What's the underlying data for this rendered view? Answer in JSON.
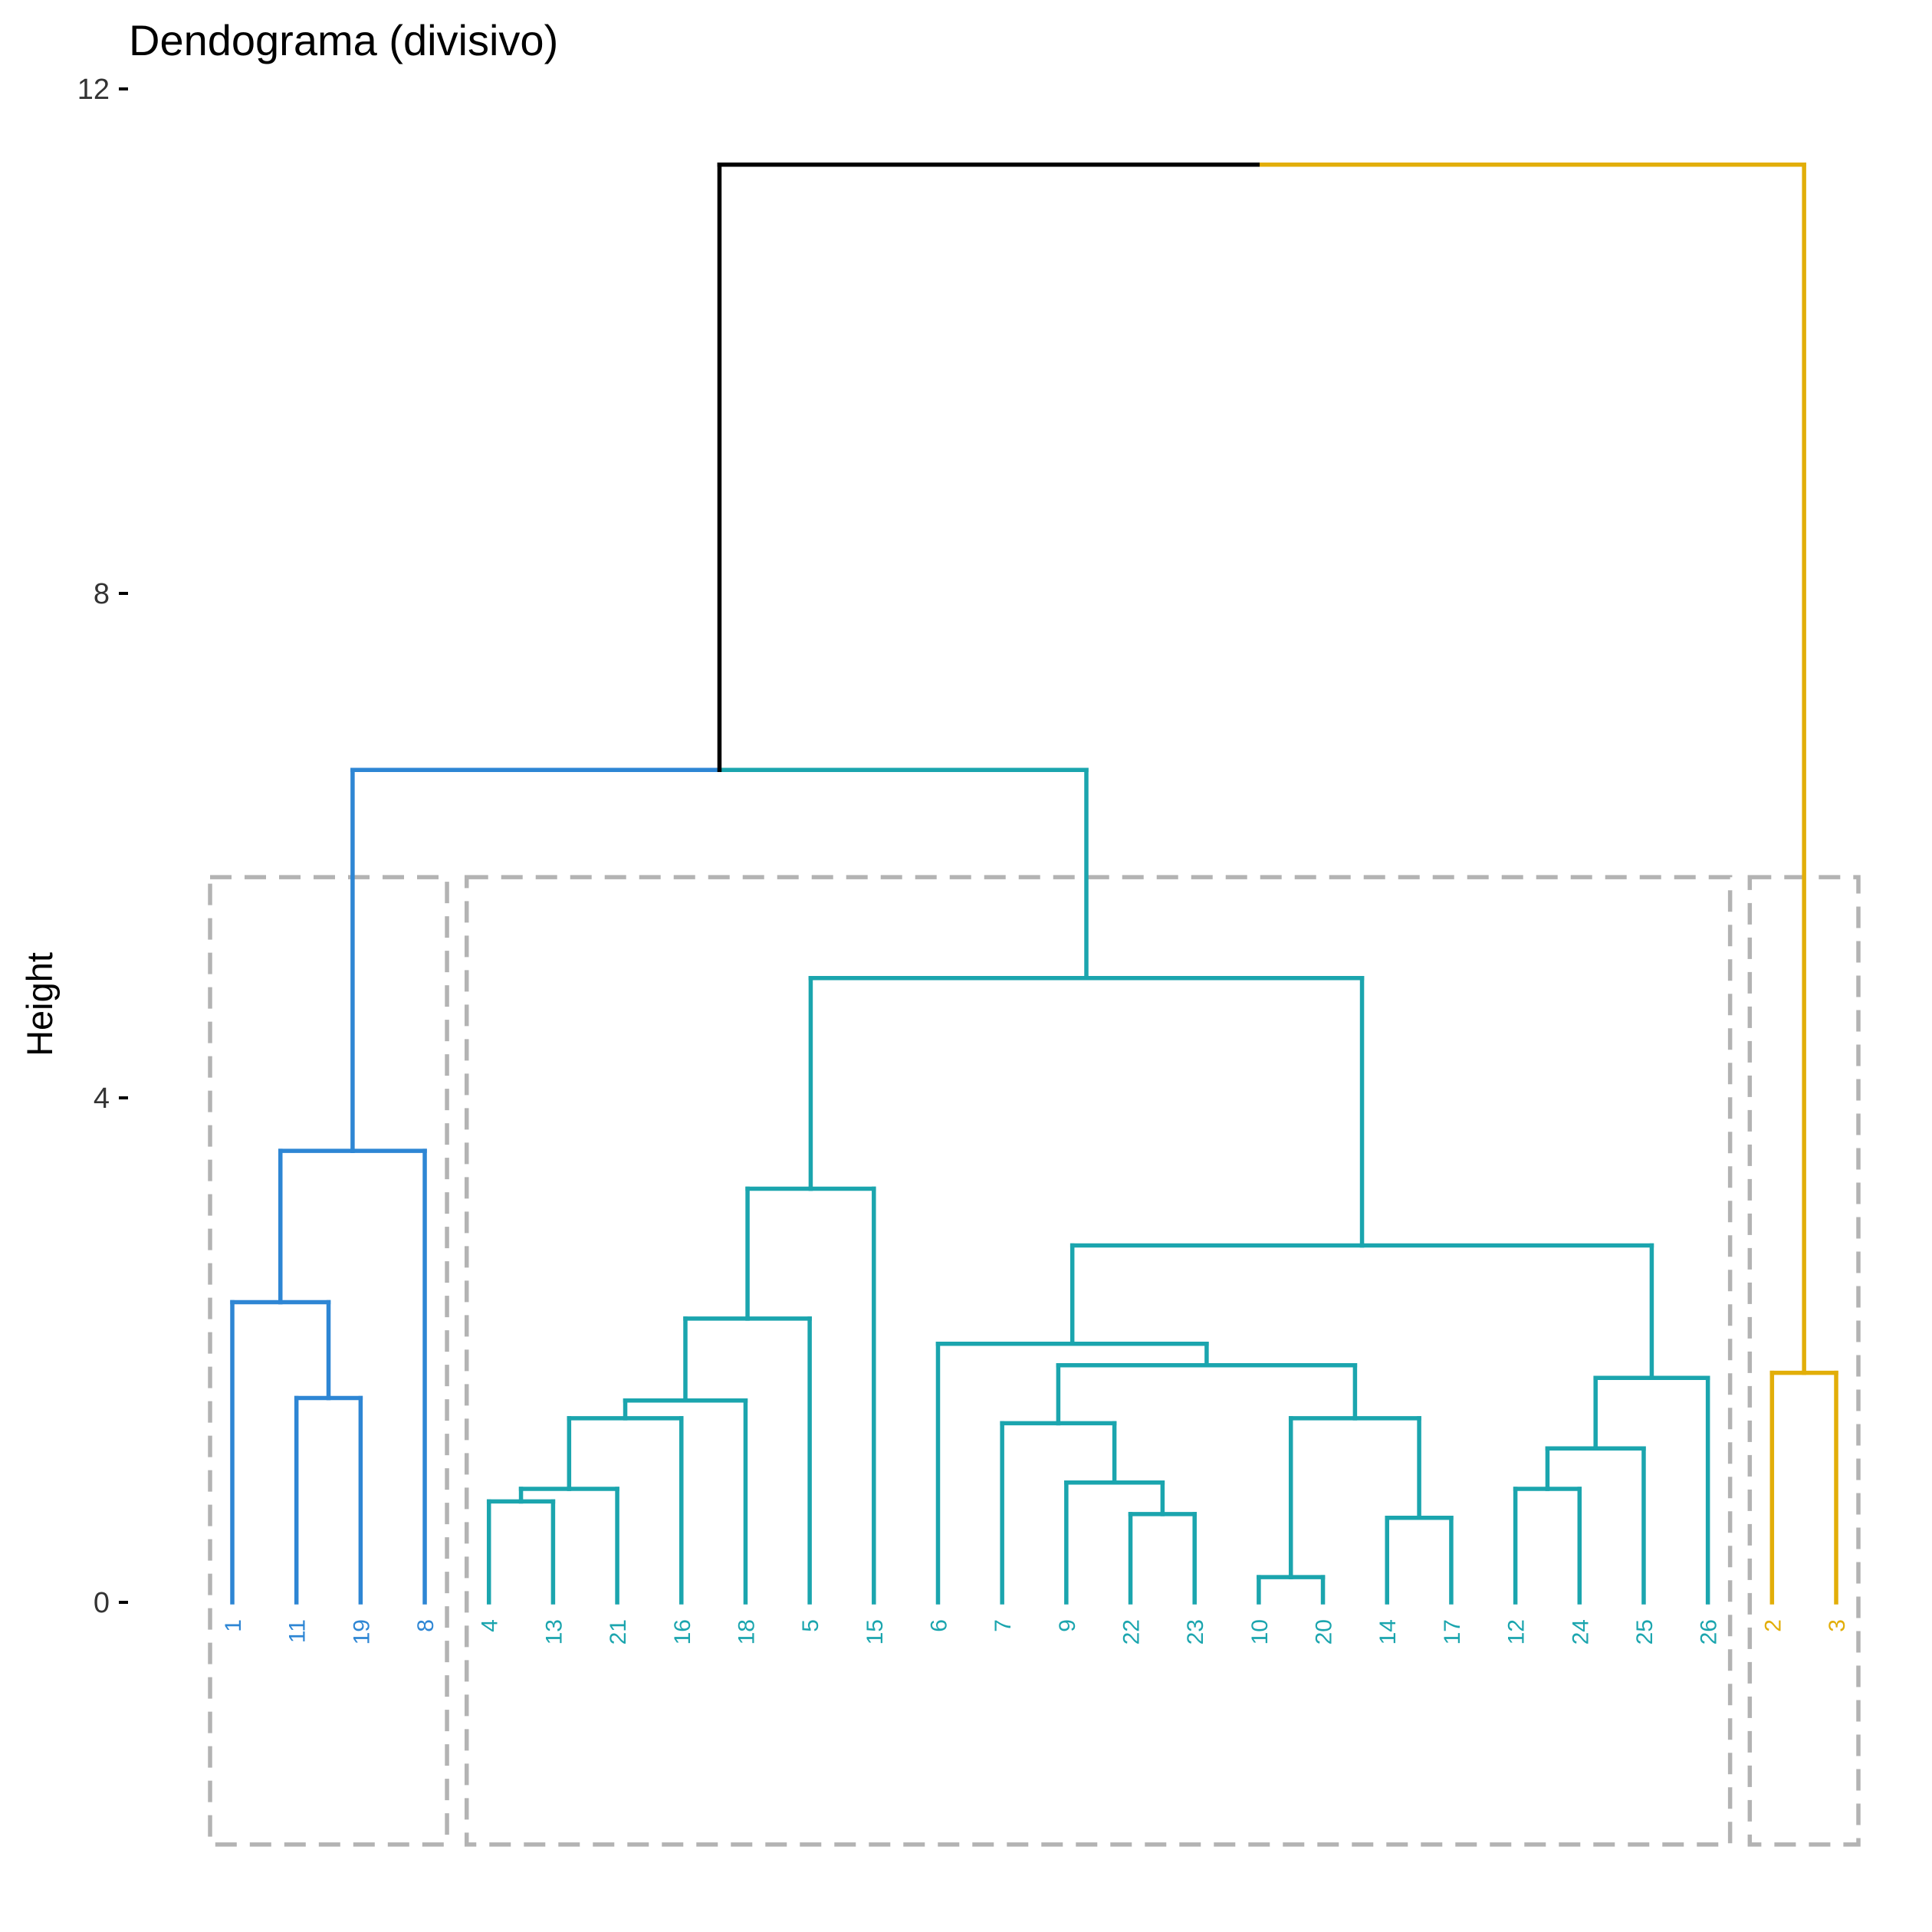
{
  "chart_data": {
    "type": "dendrogram",
    "title": "Dendograma (divisivo)",
    "xlabel": "",
    "ylabel": "Height",
    "ylim": [
      -3,
      12
    ],
    "yticks": [
      0,
      4,
      8,
      12
    ],
    "grid": false,
    "leaf_order": [
      "1",
      "11",
      "19",
      "8",
      "4",
      "13",
      "21",
      "16",
      "18",
      "5",
      "15",
      "6",
      "7",
      "9",
      "22",
      "23",
      "10",
      "20",
      "14",
      "17",
      "12",
      "24",
      "25",
      "26",
      "2",
      "3"
    ],
    "leaf_clusters": [
      1,
      1,
      1,
      1,
      2,
      2,
      2,
      2,
      2,
      2,
      2,
      2,
      2,
      2,
      2,
      2,
      2,
      2,
      2,
      2,
      2,
      2,
      2,
      2,
      3,
      3
    ],
    "cluster_colors": {
      "1": "#2E86D4",
      "2": "#1BA5AE",
      "3": "#E2AE09",
      "root": "#000000"
    },
    "merges": [
      {
        "left": "10",
        "right": "20",
        "height": 0.2
      },
      {
        "left": "22",
        "right": "23",
        "height": 0.7
      },
      {
        "left": "14",
        "right": "17",
        "height": 0.67
      },
      {
        "left": "4",
        "right": "13",
        "height": 0.8
      },
      {
        "left": "12",
        "right": "24",
        "height": 0.9
      },
      {
        "left": "9",
        "right": [
          "22",
          "23"
        ],
        "height": 0.95
      },
      {
        "left": [
          "4",
          "13"
        ],
        "right": "21",
        "height": 0.9
      },
      {
        "left": [
          "12",
          "24"
        ],
        "right": "25",
        "height": 1.22
      },
      {
        "left": "7",
        "right": [
          "9",
          "22",
          "23"
        ],
        "height": 1.42
      },
      {
        "left": [
          "10",
          "20"
        ],
        "right": [
          "14",
          "17"
        ],
        "height": 1.46
      },
      {
        "left": [
          "4",
          "13",
          "21"
        ],
        "right": "16",
        "height": 1.46
      },
      {
        "left": "11",
        "right": "19",
        "height": 1.62
      },
      {
        "left": [
          "4",
          "13",
          "21",
          "16"
        ],
        "right": "18",
        "height": 1.6
      },
      {
        "left": [
          "12",
          "24",
          "25"
        ],
        "right": "26",
        "height": 1.78
      },
      {
        "left": "2",
        "right": "3",
        "height": 1.82
      },
      {
        "left": [
          "7",
          "9",
          "22",
          "23"
        ],
        "right": [
          "10",
          "20",
          "14",
          "17"
        ],
        "height": 1.88
      },
      {
        "left": "6",
        "right": [
          "7",
          "9",
          "22",
          "23",
          "10",
          "20",
          "14",
          "17"
        ],
        "height": 2.05
      },
      {
        "left": [
          "4",
          "13",
          "21",
          "16",
          "18"
        ],
        "right": "5",
        "height": 2.25
      },
      {
        "left": "1",
        "right": [
          "11",
          "19"
        ],
        "height": 2.38
      },
      {
        "left": [
          "6",
          "7",
          "9",
          "22",
          "23",
          "10",
          "20",
          "14",
          "17"
        ],
        "right": [
          "12",
          "24",
          "25",
          "26"
        ],
        "height": 2.83
      },
      {
        "left": [
          "4",
          "13",
          "21",
          "16",
          "18",
          "5"
        ],
        "right": "15",
        "height": 3.28
      },
      {
        "left": [
          "1",
          "11",
          "19"
        ],
        "right": "8",
        "height": 3.58
      },
      {
        "left": "c2a",
        "right": "c2b",
        "height": 4.95
      },
      {
        "left": "cluster1",
        "right": "cluster2",
        "height": 6.6
      },
      {
        "left": "clusters1-2",
        "right": "cluster3",
        "height": 11.4
      }
    ],
    "cluster_boxes_top": 5.75,
    "cluster_boxes_bottom": -1.92
  }
}
